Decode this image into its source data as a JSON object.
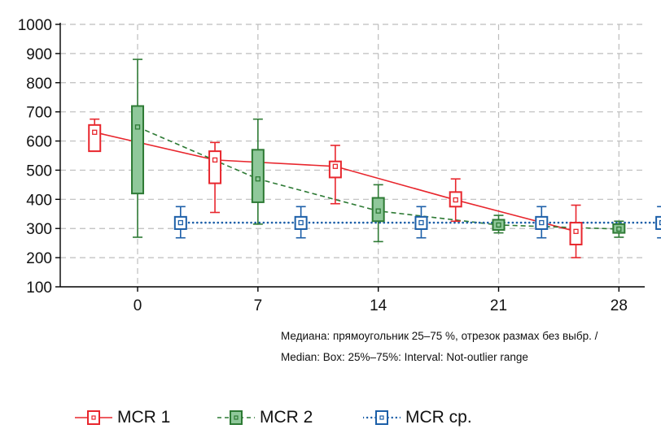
{
  "chart_data": {
    "type": "boxplot",
    "x": [
      0,
      7,
      14,
      21,
      28
    ],
    "xlim": [
      -4.5,
      29.5
    ],
    "ylim": [
      100,
      1000
    ],
    "yticks": [
      100,
      200,
      300,
      400,
      500,
      600,
      700,
      800,
      900,
      1000
    ],
    "xticks": [
      0,
      7,
      14,
      21,
      28
    ],
    "grid": true,
    "note_line1": "Медиана: прямоугольник 25–75 %, отрезок размах без выбр. /",
    "note_line2": "Median: Box: 25%–75%: Interval: Not-outlier range",
    "legend_position": "bottom",
    "series": [
      {
        "name": "MCR 1",
        "color": "#e8262d",
        "line_style": "solid",
        "box_fill": "#ffffff",
        "points": [
          {
            "x": 0,
            "median": 630,
            "q1": 565,
            "q3": 655,
            "min": 565,
            "max": 675
          },
          {
            "x": 7,
            "median": 535,
            "q1": 455,
            "q3": 565,
            "min": 355,
            "max": 595
          },
          {
            "x": 14,
            "median": 513,
            "q1": 475,
            "q3": 530,
            "min": 385,
            "max": 585
          },
          {
            "x": 21,
            "median": 398,
            "q1": 375,
            "q3": 425,
            "min": 325,
            "max": 470
          },
          {
            "x": 28,
            "median": 290,
            "q1": 245,
            "q3": 320,
            "min": 200,
            "max": 380
          }
        ]
      },
      {
        "name": "MCR 2",
        "color": "#2d7a34",
        "line_style": "dashed",
        "box_fill": "#8fc89a",
        "points": [
          {
            "x": 0,
            "median": 648,
            "q1": 420,
            "q3": 720,
            "min": 270,
            "max": 880
          },
          {
            "x": 7,
            "median": 470,
            "q1": 390,
            "q3": 570,
            "min": 315,
            "max": 675
          },
          {
            "x": 14,
            "median": 360,
            "q1": 325,
            "q3": 405,
            "min": 255,
            "max": 450
          },
          {
            "x": 21,
            "median": 312,
            "q1": 295,
            "q3": 330,
            "min": 285,
            "max": 345
          },
          {
            "x": 28,
            "median": 298,
            "q1": 285,
            "q3": 315,
            "min": 270,
            "max": 325
          }
        ]
      },
      {
        "name": "MCR ср.",
        "color": "#1c5fa8",
        "line_style": "dotted",
        "box_fill": "#ffffff",
        "points": [
          {
            "x": 0,
            "median": 320,
            "q1": 298,
            "q3": 340,
            "min": 268,
            "max": 375
          },
          {
            "x": 7,
            "median": 320,
            "q1": 298,
            "q3": 340,
            "min": 268,
            "max": 375
          },
          {
            "x": 14,
            "median": 320,
            "q1": 298,
            "q3": 340,
            "min": 268,
            "max": 375
          },
          {
            "x": 21,
            "median": 320,
            "q1": 298,
            "q3": 340,
            "min": 268,
            "max": 375
          },
          {
            "x": 28,
            "median": 320,
            "q1": 298,
            "q3": 340,
            "min": 268,
            "max": 375
          }
        ]
      }
    ]
  }
}
